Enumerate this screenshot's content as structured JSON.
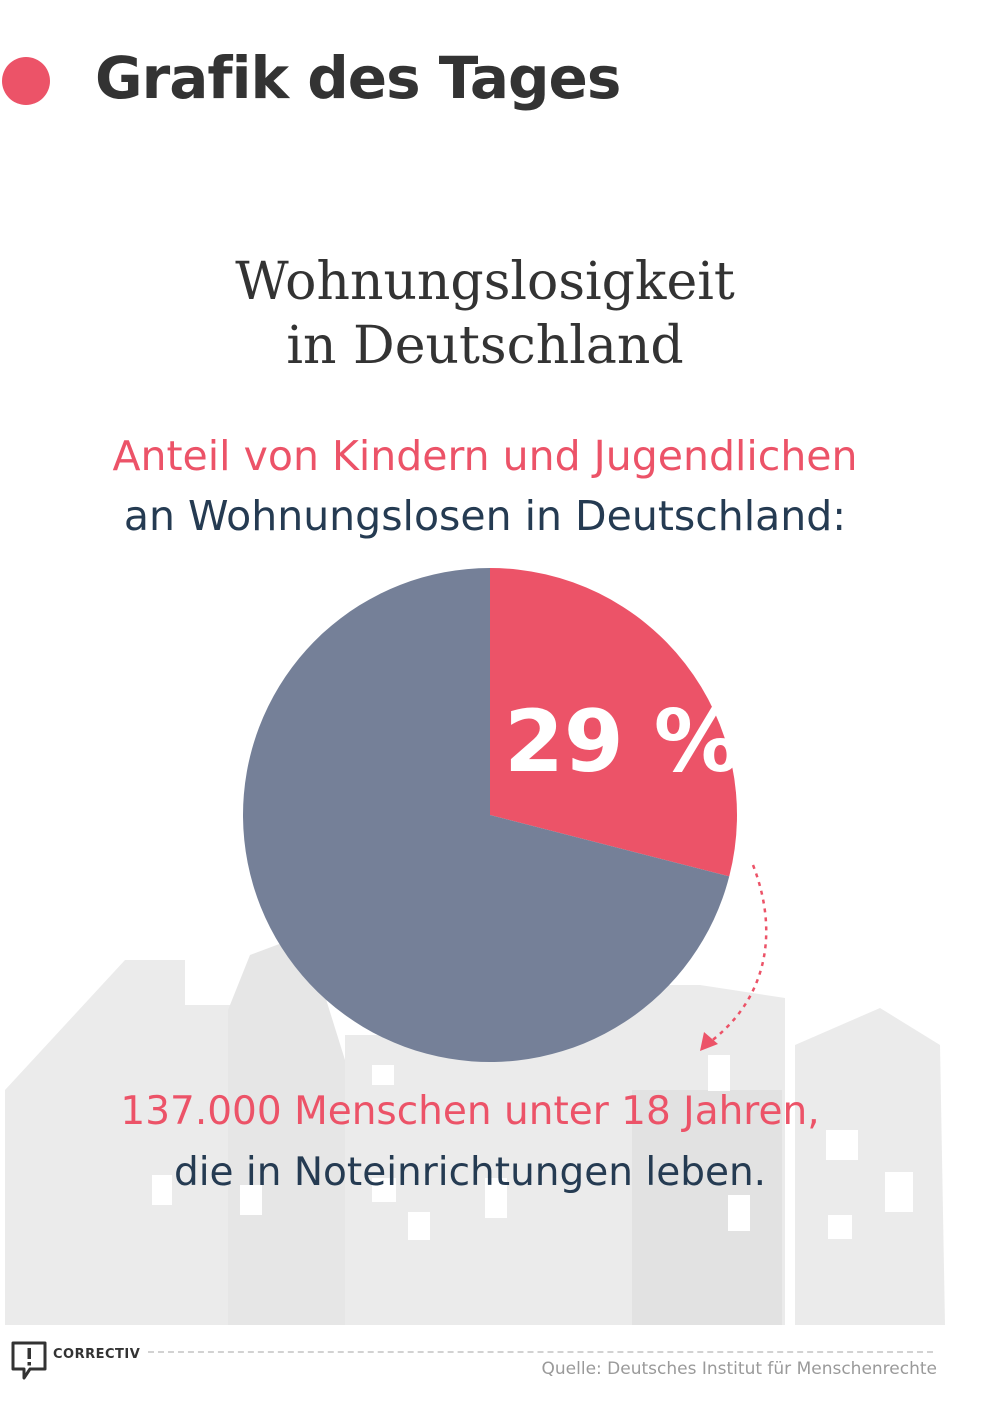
{
  "header": {
    "title": "Grafik des Tages"
  },
  "chart_data": {
    "type": "pie",
    "title": [
      "Wohnungslosigkeit",
      "in Deutschland"
    ],
    "subtitle": [
      "Anteil von Kindern und Jugendlichen",
      "an Wohnungslosen in Deutschland:"
    ],
    "slices": [
      {
        "label": "29 %",
        "value": 29,
        "color": "#ec5368"
      },
      {
        "label": "",
        "value": 71,
        "color": "#758098"
      }
    ],
    "annotation": [
      "137.000 Menschen unter 18 Jahren,",
      "die in Noteinrichtungen leben."
    ]
  },
  "footer": {
    "logo_text": "CORRECTIV",
    "source": "Quelle: Deutsches Institut für Menschenrechte"
  },
  "colors": {
    "accent": "#ec5368",
    "dark_text": "#253b52",
    "background_buildings": "#ebebeb"
  }
}
